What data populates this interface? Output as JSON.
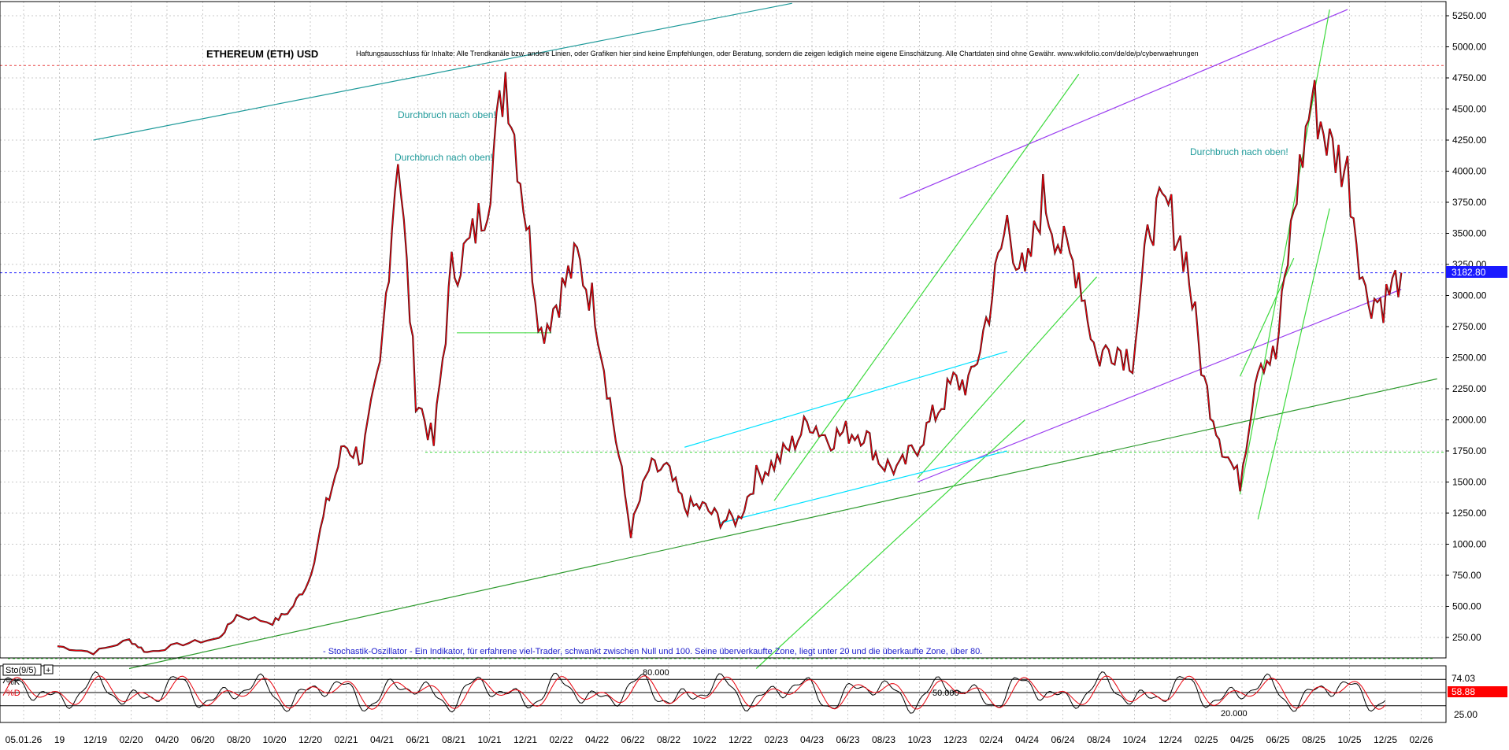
{
  "chart_data": {
    "type": "line",
    "title": "ETHEREUM (ETH) USD",
    "disclaimer": "Haftungsausschluss für Inhalte: Alle Trendkanäle bzw. andere Linien, oder Grafiken hier sind keine Empfehlungen, oder Beratung, sondern die zeigen lediglich meine eigene Einschätzung. Alle Chartdaten sind ohne Gewähr. www.wikifolio.com/de/de/p/cyberwaehrungen",
    "price_axis": {
      "ticks": [
        "5250.00",
        "5000.00",
        "4750.00",
        "4500.00",
        "4250.00",
        "4000.00",
        "3750.00",
        "3500.00",
        "3250.00",
        "3000.00",
        "2750.00",
        "2500.00",
        "2250.00",
        "2000.00",
        "1750.00",
        "1500.00",
        "1250.00",
        "1000.00",
        "750.00",
        "500.00",
        "250.00"
      ],
      "range": [
        0,
        5350
      ],
      "scale": "linear",
      "grid": true
    },
    "current_price": "3182.80",
    "current_price_color": "#1a1aff",
    "x_axis": {
      "ticks": [
        "05.01.26",
        "19",
        "12/19",
        "02/20",
        "04/20",
        "06/20",
        "08/20",
        "10/20",
        "12/20",
        "02/21",
        "04/21",
        "06/21",
        "08/21",
        "10/21",
        "12/21",
        "02/22",
        "04/22",
        "06/22",
        "08/22",
        "10/22",
        "12/22",
        "02/23",
        "04/23",
        "06/23",
        "08/23",
        "10/23",
        "12/23",
        "02/24",
        "04/24",
        "06/24",
        "08/24",
        "10/24",
        "12/24",
        "02/25",
        "04/25",
        "06/25",
        "08/25",
        "10/25",
        "12/25",
        "02/26"
      ]
    },
    "series": [
      {
        "name": "",
        "color": "#e8000b",
        "points": [
          [
            "2019-10",
            180
          ],
          [
            "2019-12",
            130
          ],
          [
            "2020-02",
            230
          ],
          [
            "2020-03",
            130
          ],
          [
            "2020-05",
            200
          ],
          [
            "2020-07",
            240
          ],
          [
            "2020-08",
            430
          ],
          [
            "2020-10",
            370
          ],
          [
            "2020-11",
            470
          ],
          [
            "2020-12",
            700
          ],
          [
            "2021-01",
            1300
          ],
          [
            "2021-02",
            1800
          ],
          [
            "2021-03",
            1700
          ],
          [
            "2021-04",
            2400
          ],
          [
            "2021-05",
            4200
          ],
          [
            "2021-06",
            2200
          ],
          [
            "2021-07",
            1800
          ],
          [
            "2021-08",
            3200
          ],
          [
            "2021-09",
            3400
          ],
          [
            "2021-10",
            3800
          ],
          [
            "2021-11",
            4800
          ],
          [
            "2021-12",
            3800
          ],
          [
            "2022-01",
            2700
          ],
          [
            "2022-02",
            3000
          ],
          [
            "2022-03",
            3300
          ],
          [
            "2022-04",
            2900
          ],
          [
            "2022-05",
            2000
          ],
          [
            "2022-06",
            1100
          ],
          [
            "2022-07",
            1600
          ],
          [
            "2022-08",
            1600
          ],
          [
            "2022-09",
            1300
          ],
          [
            "2022-10",
            1300
          ],
          [
            "2022-11",
            1200
          ],
          [
            "2022-12",
            1200
          ],
          [
            "2023-01",
            1550
          ],
          [
            "2023-02",
            1650
          ],
          [
            "2023-03",
            1800
          ],
          [
            "2023-04",
            2000
          ],
          [
            "2023-05",
            1850
          ],
          [
            "2023-06",
            1900
          ],
          [
            "2023-07",
            1900
          ],
          [
            "2023-08",
            1650
          ],
          [
            "2023-09",
            1600
          ],
          [
            "2023-10",
            1800
          ],
          [
            "2023-11",
            2050
          ],
          [
            "2023-12",
            2300
          ],
          [
            "2024-01",
            2300
          ],
          [
            "2024-02",
            2900
          ],
          [
            "2024-03",
            3600
          ],
          [
            "2024-04",
            3100
          ],
          [
            "2024-05",
            3800
          ],
          [
            "2024-06",
            3400
          ],
          [
            "2024-07",
            3200
          ],
          [
            "2024-08",
            2500
          ],
          [
            "2024-09",
            2600
          ],
          [
            "2024-10",
            2500
          ],
          [
            "2024-11",
            3600
          ],
          [
            "2024-12",
            3700
          ],
          [
            "2025-01",
            3300
          ],
          [
            "2025-02",
            2300
          ],
          [
            "2025-03",
            1800
          ],
          [
            "2025-04",
            1500
          ],
          [
            "2025-05",
            2500
          ],
          [
            "2025-06",
            2500
          ],
          [
            "2025-07",
            3700
          ],
          [
            "2025-08",
            4600
          ],
          [
            "2025-09",
            4200
          ],
          [
            "2025-10",
            4000
          ],
          [
            "2025-11",
            3000
          ],
          [
            "2025-12",
            2950
          ],
          [
            "2026-01",
            3182.8
          ]
        ]
      }
    ],
    "annotations": [
      {
        "text": "Durchbruch nach oben!",
        "at": [
          "2021-05",
          4380
        ]
      },
      {
        "text": "Durchbruch nach oben!",
        "at": [
          "2021-05",
          4100
        ]
      },
      {
        "text": "Durchbruch nach oben!",
        "at": [
          "2024-11",
          4150
        ]
      }
    ],
    "indicator": {
      "name": "Sto(9/5)",
      "labels": [
        "%K",
        "%D"
      ],
      "levels": [
        "80.000",
        "50.000",
        "20.000"
      ],
      "ticks": [
        "25.00"
      ],
      "current_k": "74.03",
      "current_d": "58.88",
      "note": "- Stochastik-Oszillator - Ein Indikator, für erfahrene viel-Trader, schwankt zwischen Null und 100. Seine überverkaufte Zone, liegt unter 20 und die überkaufte Zone, über 80."
    },
    "trendlines": [
      {
        "color": "#1e9a9a",
        "from": [
          "2019-12",
          4250
        ],
        "to": [
          "2023-03",
          5350
        ]
      },
      {
        "color": "#2e9a2e",
        "from": [
          "2020-02",
          0
        ],
        "to": [
          "2026-03",
          2330
        ]
      },
      {
        "color": "#9a3df0",
        "from": [
          "2023-09",
          3780
        ],
        "to": [
          "2025-10",
          5300
        ]
      },
      {
        "color": "#9a3df0",
        "from": [
          "2023-10",
          1500
        ],
        "to": [
          "2026-01",
          3050
        ]
      },
      {
        "color": "#3cd93c",
        "from": [
          "2023-02",
          1350
        ],
        "to": [
          "2024-07",
          4780
        ]
      },
      {
        "color": "#3cd93c",
        "from": [
          "2023-01",
          0
        ],
        "to": [
          "2024-04",
          2000
        ]
      },
      {
        "color": "#3cd93c",
        "from": [
          "2023-10",
          1530
        ],
        "to": [
          "2024-08",
          3150
        ]
      },
      {
        "color": "#3cd93c",
        "from": [
          "2025-04",
          1400
        ],
        "to": [
          "2025-09",
          5300
        ]
      },
      {
        "color": "#3cd93c",
        "from": [
          "2025-04",
          2350
        ],
        "to": [
          "2025-07",
          3300
        ]
      },
      {
        "color": "#3cd93c",
        "from": [
          "2025-05",
          1200
        ],
        "to": [
          "2025-09",
          3700
        ]
      },
      {
        "color": "#00e1ff",
        "from": [
          "2022-11",
          1170
        ],
        "to": [
          "2024-03",
          1750
        ]
      },
      {
        "color": "#00e1ff",
        "from": [
          "2022-09",
          1780
        ],
        "to": [
          "2024-03",
          2550
        ]
      }
    ]
  }
}
